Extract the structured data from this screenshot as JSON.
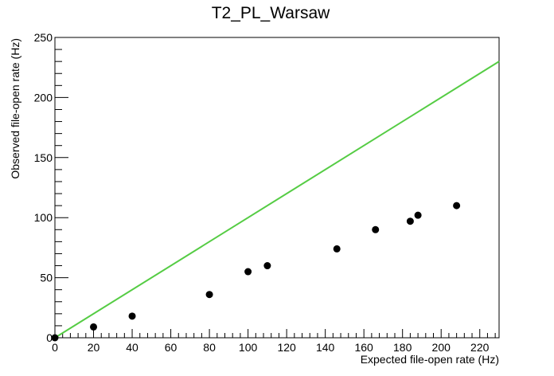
{
  "chart_data": {
    "type": "scatter",
    "title": "T2_PL_Warsaw",
    "xlabel": "Expected file-open rate (Hz)",
    "ylabel": "Observed file-open rate (Hz)",
    "xlim": [
      0,
      230
    ],
    "ylim": [
      0,
      250
    ],
    "x_ticks": [
      0,
      20,
      40,
      60,
      80,
      100,
      120,
      140,
      160,
      180,
      200,
      220
    ],
    "y_ticks": [
      0,
      50,
      100,
      150,
      200,
      250
    ],
    "grid": false,
    "legend": "none",
    "points": {
      "x": [
        0,
        20,
        40,
        80,
        100,
        110,
        146,
        166,
        184,
        188,
        208
      ],
      "y": [
        0,
        9,
        18,
        36,
        55,
        60,
        74,
        90,
        97,
        102,
        110
      ],
      "color": "#000000"
    },
    "reference_line": {
      "x": [
        0,
        230
      ],
      "y": [
        0,
        230
      ],
      "color": "#55cc44"
    }
  }
}
